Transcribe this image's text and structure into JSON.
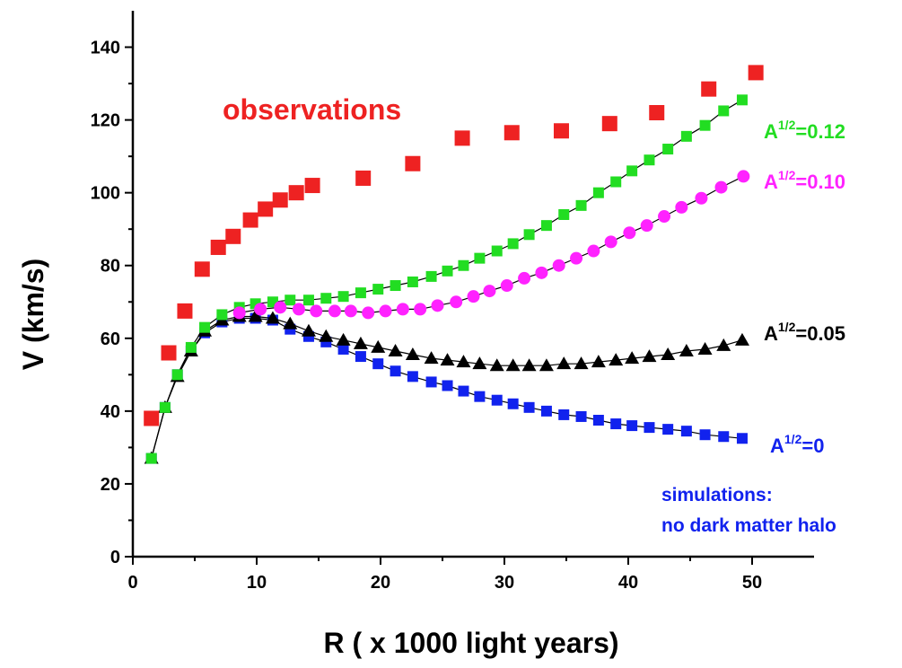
{
  "chart_data": {
    "type": "scatter",
    "xlabel": "R ( x 1000 light years)",
    "ylabel": "V (km/s)",
    "xlim": [
      0,
      55
    ],
    "ylim": [
      0,
      150
    ],
    "x_ticks": [
      "0",
      "10",
      "20",
      "30",
      "40",
      "50"
    ],
    "y_ticks": [
      "0",
      "20",
      "40",
      "60",
      "80",
      "100",
      "120",
      "140"
    ],
    "grid": false,
    "annotations": {
      "observations": "observations",
      "simulations_line1": "simulations:",
      "simulations_line2": "no dark matter halo"
    },
    "series": [
      {
        "name": "observations",
        "label_base": "",
        "label_sup": "",
        "label_value": "",
        "color": "#ee2222",
        "marker": "square",
        "line": false,
        "points": [
          [
            1.5,
            38
          ],
          [
            2.9,
            56
          ],
          [
            4.2,
            67.5
          ],
          [
            5.6,
            79
          ],
          [
            6.9,
            85
          ],
          [
            8.1,
            88
          ],
          [
            9.5,
            92.5
          ],
          [
            10.7,
            95.5
          ],
          [
            11.9,
            98
          ],
          [
            13.2,
            100
          ],
          [
            14.5,
            102
          ],
          [
            18.6,
            104
          ],
          [
            22.6,
            108
          ],
          [
            26.6,
            115
          ],
          [
            30.6,
            116.5
          ],
          [
            34.6,
            117
          ],
          [
            38.5,
            119
          ],
          [
            42.3,
            122
          ],
          [
            46.5,
            128.5
          ],
          [
            50.3,
            133
          ]
        ]
      },
      {
        "name": "A^1/2=0.12",
        "label_base": "A",
        "label_sup": "1/2",
        "label_value": "=0.12",
        "color": "#22dd22",
        "marker": "square",
        "line": true,
        "points": [
          [
            1.5,
            27
          ],
          [
            2.6,
            41
          ],
          [
            3.6,
            50
          ],
          [
            4.7,
            57.5
          ],
          [
            5.8,
            63
          ],
          [
            7.2,
            66.5
          ],
          [
            8.6,
            68.5
          ],
          [
            9.9,
            69.5
          ],
          [
            11.3,
            70
          ],
          [
            12.7,
            70.5
          ],
          [
            14.2,
            70.5
          ],
          [
            15.6,
            71
          ],
          [
            17.0,
            71.5
          ],
          [
            18.4,
            72.5
          ],
          [
            19.8,
            73.5
          ],
          [
            21.2,
            74.5
          ],
          [
            22.6,
            75.5
          ],
          [
            24.1,
            77
          ],
          [
            25.4,
            78.5
          ],
          [
            26.7,
            80
          ],
          [
            28.0,
            82
          ],
          [
            29.4,
            84
          ],
          [
            30.7,
            86
          ],
          [
            32.0,
            88.5
          ],
          [
            33.4,
            91
          ],
          [
            34.8,
            94
          ],
          [
            36.2,
            96.5
          ],
          [
            37.6,
            100
          ],
          [
            39.0,
            103
          ],
          [
            40.3,
            106
          ],
          [
            41.7,
            109
          ],
          [
            43.2,
            112
          ],
          [
            44.7,
            115.5
          ],
          [
            46.2,
            118.5
          ],
          [
            47.7,
            122.5
          ],
          [
            49.2,
            125.5
          ]
        ]
      },
      {
        "name": "A^1/2=0.10",
        "label_base": "A",
        "label_sup": "1/2",
        "label_value": "=0.10",
        "color": "#ff22ff",
        "marker": "circle",
        "line": true,
        "points": [
          [
            8.6,
            67
          ],
          [
            10.3,
            68
          ],
          [
            11.9,
            68.5
          ],
          [
            13.4,
            68
          ],
          [
            14.8,
            67.5
          ],
          [
            16.3,
            67.5
          ],
          [
            17.6,
            67.5
          ],
          [
            19.0,
            67
          ],
          [
            20.4,
            67.5
          ],
          [
            21.8,
            68
          ],
          [
            23.2,
            68
          ],
          [
            24.6,
            69
          ],
          [
            26.1,
            70
          ],
          [
            27.5,
            71.5
          ],
          [
            28.8,
            73
          ],
          [
            30.2,
            74.5
          ],
          [
            31.6,
            76.5
          ],
          [
            33.0,
            78
          ],
          [
            34.4,
            80
          ],
          [
            35.8,
            82
          ],
          [
            37.2,
            84
          ],
          [
            38.6,
            86.5
          ],
          [
            40.1,
            89
          ],
          [
            41.5,
            91
          ],
          [
            42.9,
            93.5
          ],
          [
            44.3,
            96
          ],
          [
            45.9,
            98.5
          ],
          [
            47.5,
            101.5
          ],
          [
            49.3,
            104.5
          ]
        ]
      },
      {
        "name": "A^1/2=0.05",
        "label_base": "A",
        "label_sup": "1/2",
        "label_value": "=0.05",
        "color": "#000000",
        "marker": "triangle",
        "line": true,
        "points": [
          [
            1.5,
            27
          ],
          [
            2.6,
            41
          ],
          [
            3.6,
            49.5
          ],
          [
            4.7,
            56.5
          ],
          [
            5.8,
            62
          ],
          [
            7.2,
            65
          ],
          [
            8.6,
            66
          ],
          [
            9.9,
            66
          ],
          [
            11.3,
            65.5
          ],
          [
            12.7,
            64
          ],
          [
            14.2,
            62
          ],
          [
            15.6,
            60.5
          ],
          [
            17.0,
            59.5
          ],
          [
            18.4,
            58.5
          ],
          [
            19.8,
            57.5
          ],
          [
            21.2,
            56.5
          ],
          [
            22.6,
            55.5
          ],
          [
            24.1,
            54.5
          ],
          [
            25.4,
            54
          ],
          [
            26.7,
            53.5
          ],
          [
            28.0,
            53
          ],
          [
            29.4,
            52.5
          ],
          [
            30.7,
            52.5
          ],
          [
            32.0,
            52.5
          ],
          [
            33.4,
            52.5
          ],
          [
            34.8,
            53
          ],
          [
            36.2,
            53
          ],
          [
            37.6,
            53.5
          ],
          [
            39.0,
            54
          ],
          [
            40.3,
            54.5
          ],
          [
            41.7,
            55
          ],
          [
            43.2,
            55.5
          ],
          [
            44.7,
            56.5
          ],
          [
            46.2,
            57
          ],
          [
            47.7,
            58
          ],
          [
            49.2,
            59.5
          ]
        ]
      },
      {
        "name": "A^1/2=0",
        "label_base": "A",
        "label_sup": "1/2",
        "label_value": "=0",
        "color": "#1122ee",
        "marker": "square",
        "line": true,
        "points": [
          [
            1.5,
            27
          ],
          [
            2.6,
            41
          ],
          [
            3.6,
            50
          ],
          [
            4.7,
            56.5
          ],
          [
            5.8,
            61.5
          ],
          [
            7.2,
            64.5
          ],
          [
            8.6,
            65.5
          ],
          [
            9.9,
            65.5
          ],
          [
            11.3,
            65
          ],
          [
            12.7,
            62.5
          ],
          [
            14.2,
            60.5
          ],
          [
            15.6,
            59
          ],
          [
            17.0,
            57
          ],
          [
            18.4,
            55
          ],
          [
            19.8,
            53
          ],
          [
            21.2,
            51
          ],
          [
            22.6,
            49.5
          ],
          [
            24.1,
            48
          ],
          [
            25.4,
            47
          ],
          [
            26.7,
            45.5
          ],
          [
            28.0,
            44
          ],
          [
            29.4,
            43
          ],
          [
            30.7,
            42
          ],
          [
            32.0,
            41
          ],
          [
            33.4,
            40
          ],
          [
            34.8,
            39
          ],
          [
            36.2,
            38.5
          ],
          [
            37.6,
            37.5
          ],
          [
            39.0,
            36.5
          ],
          [
            40.3,
            36
          ],
          [
            41.7,
            35.5
          ],
          [
            43.2,
            35
          ],
          [
            44.7,
            34.5
          ],
          [
            46.2,
            33.5
          ],
          [
            47.7,
            33
          ],
          [
            49.2,
            32.5
          ]
        ]
      }
    ]
  }
}
